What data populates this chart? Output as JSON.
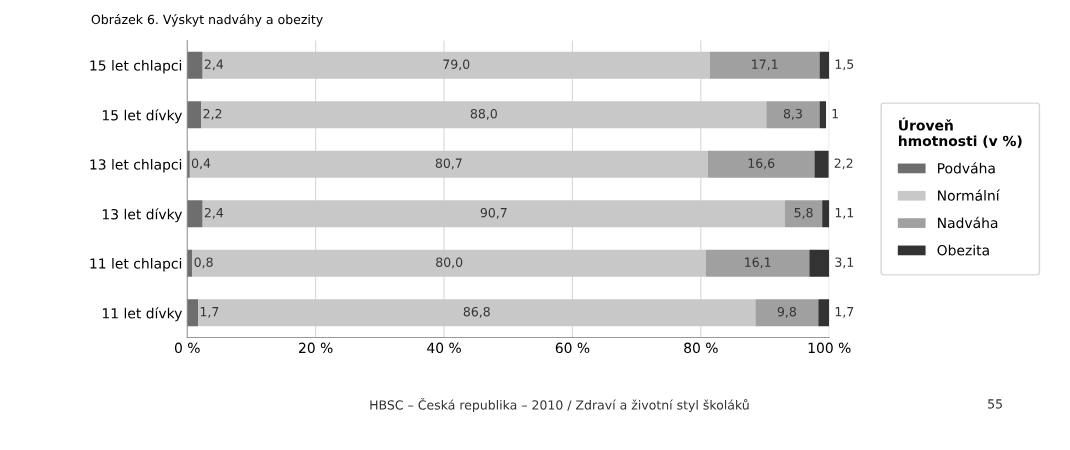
{
  "chart_data": {
    "type": "bar",
    "orientation": "horizontal",
    "stacked": true,
    "title": "Obrázek 6. Výskyt nadváhy a obezity",
    "categories": [
      "15 let chlapci",
      "15 let dívky",
      "13 let chlapci",
      "13 let dívky",
      "11 let chlapci",
      "11 let dívky"
    ],
    "series": [
      {
        "name": "Podváha",
        "color": "#6e6e6e",
        "values": [
          2.4,
          2.2,
          0.4,
          2.4,
          0.8,
          1.7
        ],
        "value_labels": [
          "2,4",
          "2,2",
          "0,4",
          "2,4",
          "0,8",
          "1,7"
        ]
      },
      {
        "name": "Normální",
        "color": "#c8c8c8",
        "values": [
          79.0,
          88.0,
          80.7,
          90.7,
          80.0,
          86.8
        ],
        "value_labels": [
          "79,0",
          "88,0",
          "80,7",
          "90,7",
          "80,0",
          "86,8"
        ]
      },
      {
        "name": "Nadváha",
        "color": "#a0a0a0",
        "values": [
          17.1,
          8.3,
          16.6,
          5.8,
          16.1,
          9.8
        ],
        "value_labels": [
          "17,1",
          "8,3",
          "16,6",
          "5,8",
          "16,1",
          "9,8"
        ]
      },
      {
        "name": "Obezita",
        "color": "#333333",
        "values": [
          1.5,
          1,
          2.2,
          1.1,
          3.1,
          1.7
        ],
        "value_labels": [
          "1,5",
          "1",
          "2,2",
          "1,1",
          "3,1",
          "1,7"
        ]
      }
    ],
    "xlim": [
      0,
      100
    ],
    "xticks": [
      {
        "value": 0,
        "label": "0 %"
      },
      {
        "value": 20,
        "label": "20 %"
      },
      {
        "value": 40,
        "label": "40 %"
      },
      {
        "value": 60,
        "label": "60 %"
      },
      {
        "value": 80,
        "label": "80 %"
      },
      {
        "value": 100,
        "label": "100 %"
      }
    ],
    "grid": "x",
    "legend": "right",
    "legend_title": "Úroveň\nhmotnosti (v %)",
    "annotations": [
      "HBSC – Česká republika – 2010 / Zdraví a životní styl školáků",
      "55"
    ]
  }
}
